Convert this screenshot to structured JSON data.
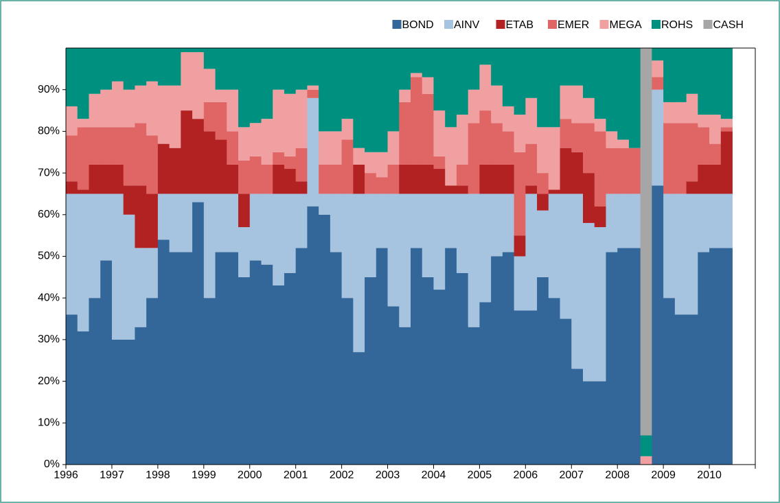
{
  "chart_data": {
    "type": "stacked_step_area",
    "x": [
      1996,
      1996.25,
      1996.5,
      1996.75,
      1997,
      1997.25,
      1997.5,
      1997.75,
      1998,
      1998.25,
      1998.5,
      1998.75,
      1999,
      1999.25,
      1999.5,
      1999.75,
      2000,
      2000.25,
      2000.5,
      2000.75,
      2001,
      2001.25,
      2001.5,
      2001.75,
      2002,
      2002.25,
      2002.5,
      2002.75,
      2003,
      2003.25,
      2003.5,
      2003.75,
      2004,
      2004.25,
      2004.5,
      2004.75,
      2005,
      2005.25,
      2005.5,
      2005.75,
      2006,
      2006.25,
      2006.5,
      2006.75,
      2007,
      2007.25,
      2007.5,
      2007.75,
      2008,
      2008.25,
      2008.5,
      2008.75,
      2009,
      2009.25,
      2009.5,
      2009.75,
      2010,
      2010.25
    ],
    "series": [
      {
        "name": "BOND",
        "color": "#336699",
        "values": [
          36,
          32,
          40,
          49,
          30,
          30,
          33,
          40,
          54,
          51,
          51,
          63,
          40,
          51,
          51,
          45,
          49,
          48,
          43,
          46,
          52,
          62,
          60,
          51,
          40,
          27,
          45,
          52,
          38,
          33,
          52,
          45,
          42,
          52,
          46,
          33,
          39,
          50,
          51,
          37,
          37,
          45,
          40,
          35,
          23,
          20,
          20,
          51,
          52,
          52,
          0,
          67,
          40,
          36,
          36,
          51,
          52,
          52
        ]
      },
      {
        "name": "AINV",
        "color": "#a6c4e0",
        "values": [
          29,
          33,
          25,
          16,
          35,
          30,
          19,
          12,
          11,
          14,
          14,
          2,
          25,
          14,
          14,
          12,
          16,
          17,
          22,
          19,
          13,
          26,
          5,
          14,
          25,
          38,
          20,
          13,
          27,
          32,
          13,
          20,
          23,
          13,
          19,
          32,
          26,
          15,
          14,
          13,
          28,
          16,
          25,
          30,
          42,
          38,
          37,
          14,
          13,
          13,
          0,
          23,
          25,
          29,
          29,
          14,
          13,
          13
        ]
      },
      {
        "name": "ETAB",
        "color": "#b22222",
        "values": [
          3,
          1,
          7,
          7,
          7,
          7,
          15,
          13,
          12,
          11,
          20,
          18,
          15,
          13,
          7,
          8,
          0,
          0,
          7,
          6,
          3,
          0,
          0,
          0,
          0,
          7,
          0,
          0,
          0,
          7,
          7,
          7,
          6,
          2,
          2,
          0,
          7,
          7,
          7,
          5,
          2,
          4,
          1,
          11,
          10,
          12,
          5,
          0,
          0,
          0,
          0,
          0,
          0,
          0,
          3,
          7,
          7,
          15
        ]
      },
      {
        "name": "EMER",
        "color": "#e06666",
        "values": [
          11,
          15,
          9,
          9,
          9,
          14,
          15,
          14,
          0,
          0,
          0,
          0,
          7,
          9,
          8,
          8,
          9,
          7,
          3,
          3,
          8,
          2,
          7,
          7,
          13,
          0,
          5,
          4,
          7,
          15,
          21,
          17,
          3,
          0,
          5,
          17,
          13,
          10,
          8,
          20,
          10,
          5,
          0,
          7,
          7,
          12,
          18,
          11,
          11,
          11,
          0,
          3,
          17,
          17,
          14,
          9,
          5,
          1
        ]
      },
      {
        "name": "MEGA",
        "color": "#f0a0a0",
        "values": [
          7,
          2,
          8,
          9,
          11,
          9,
          9,
          13,
          14,
          15,
          14,
          16,
          8,
          3,
          10,
          8,
          8,
          11,
          15,
          15,
          14,
          1,
          8,
          8,
          5,
          4,
          5,
          6,
          8,
          3,
          1,
          4,
          11,
          14,
          12,
          8,
          11,
          9,
          6,
          9,
          11,
          11,
          15,
          8,
          9,
          6,
          3,
          4,
          2,
          0,
          2,
          4,
          5,
          5,
          7,
          3,
          7,
          2
        ]
      },
      {
        "name": "ROHS",
        "color": "#009080",
        "values": [
          14,
          17,
          11,
          10,
          8,
          10,
          9,
          8,
          9,
          9,
          1,
          1,
          5,
          10,
          10,
          19,
          18,
          17,
          10,
          11,
          10,
          9,
          20,
          20,
          17,
          24,
          25,
          25,
          20,
          10,
          6,
          7,
          15,
          19,
          16,
          10,
          4,
          9,
          14,
          16,
          12,
          19,
          19,
          9,
          9,
          12,
          17,
          20,
          22,
          24,
          5,
          3,
          13,
          13,
          11,
          16,
          16,
          17
        ]
      },
      {
        "name": "CASH",
        "color": "#a6a6a6",
        "values": [
          0,
          0,
          0,
          0,
          0,
          0,
          0,
          0,
          0,
          0,
          0,
          0,
          0,
          0,
          0,
          0,
          0,
          0,
          0,
          0,
          0,
          0,
          0,
          0,
          0,
          0,
          0,
          0,
          0,
          0,
          0,
          0,
          0,
          0,
          0,
          0,
          0,
          0,
          0,
          0,
          0,
          0,
          0,
          0,
          0,
          0,
          0,
          0,
          0,
          0,
          93,
          0,
          0,
          0,
          0,
          0,
          0,
          0
        ]
      }
    ],
    "xlim": [
      1996,
      2011
    ],
    "xticks": [
      1996,
      1997,
      1998,
      1999,
      2000,
      2001,
      2002,
      2003,
      2004,
      2005,
      2006,
      2007,
      2008,
      2009,
      2010
    ],
    "ylim": [
      0,
      100
    ],
    "yticks": [
      {
        "value": 0,
        "label": "0%"
      },
      {
        "value": 10,
        "label": "10%"
      },
      {
        "value": 20,
        "label": "20%"
      },
      {
        "value": 30,
        "label": "30%"
      },
      {
        "value": 40,
        "label": "40%"
      },
      {
        "value": 50,
        "label": "50%"
      },
      {
        "value": 60,
        "label": "60%"
      },
      {
        "value": 70,
        "label": "70%"
      },
      {
        "value": 80,
        "label": "80%"
      },
      {
        "value": 90,
        "label": "90%"
      }
    ],
    "legend": "top-right"
  }
}
